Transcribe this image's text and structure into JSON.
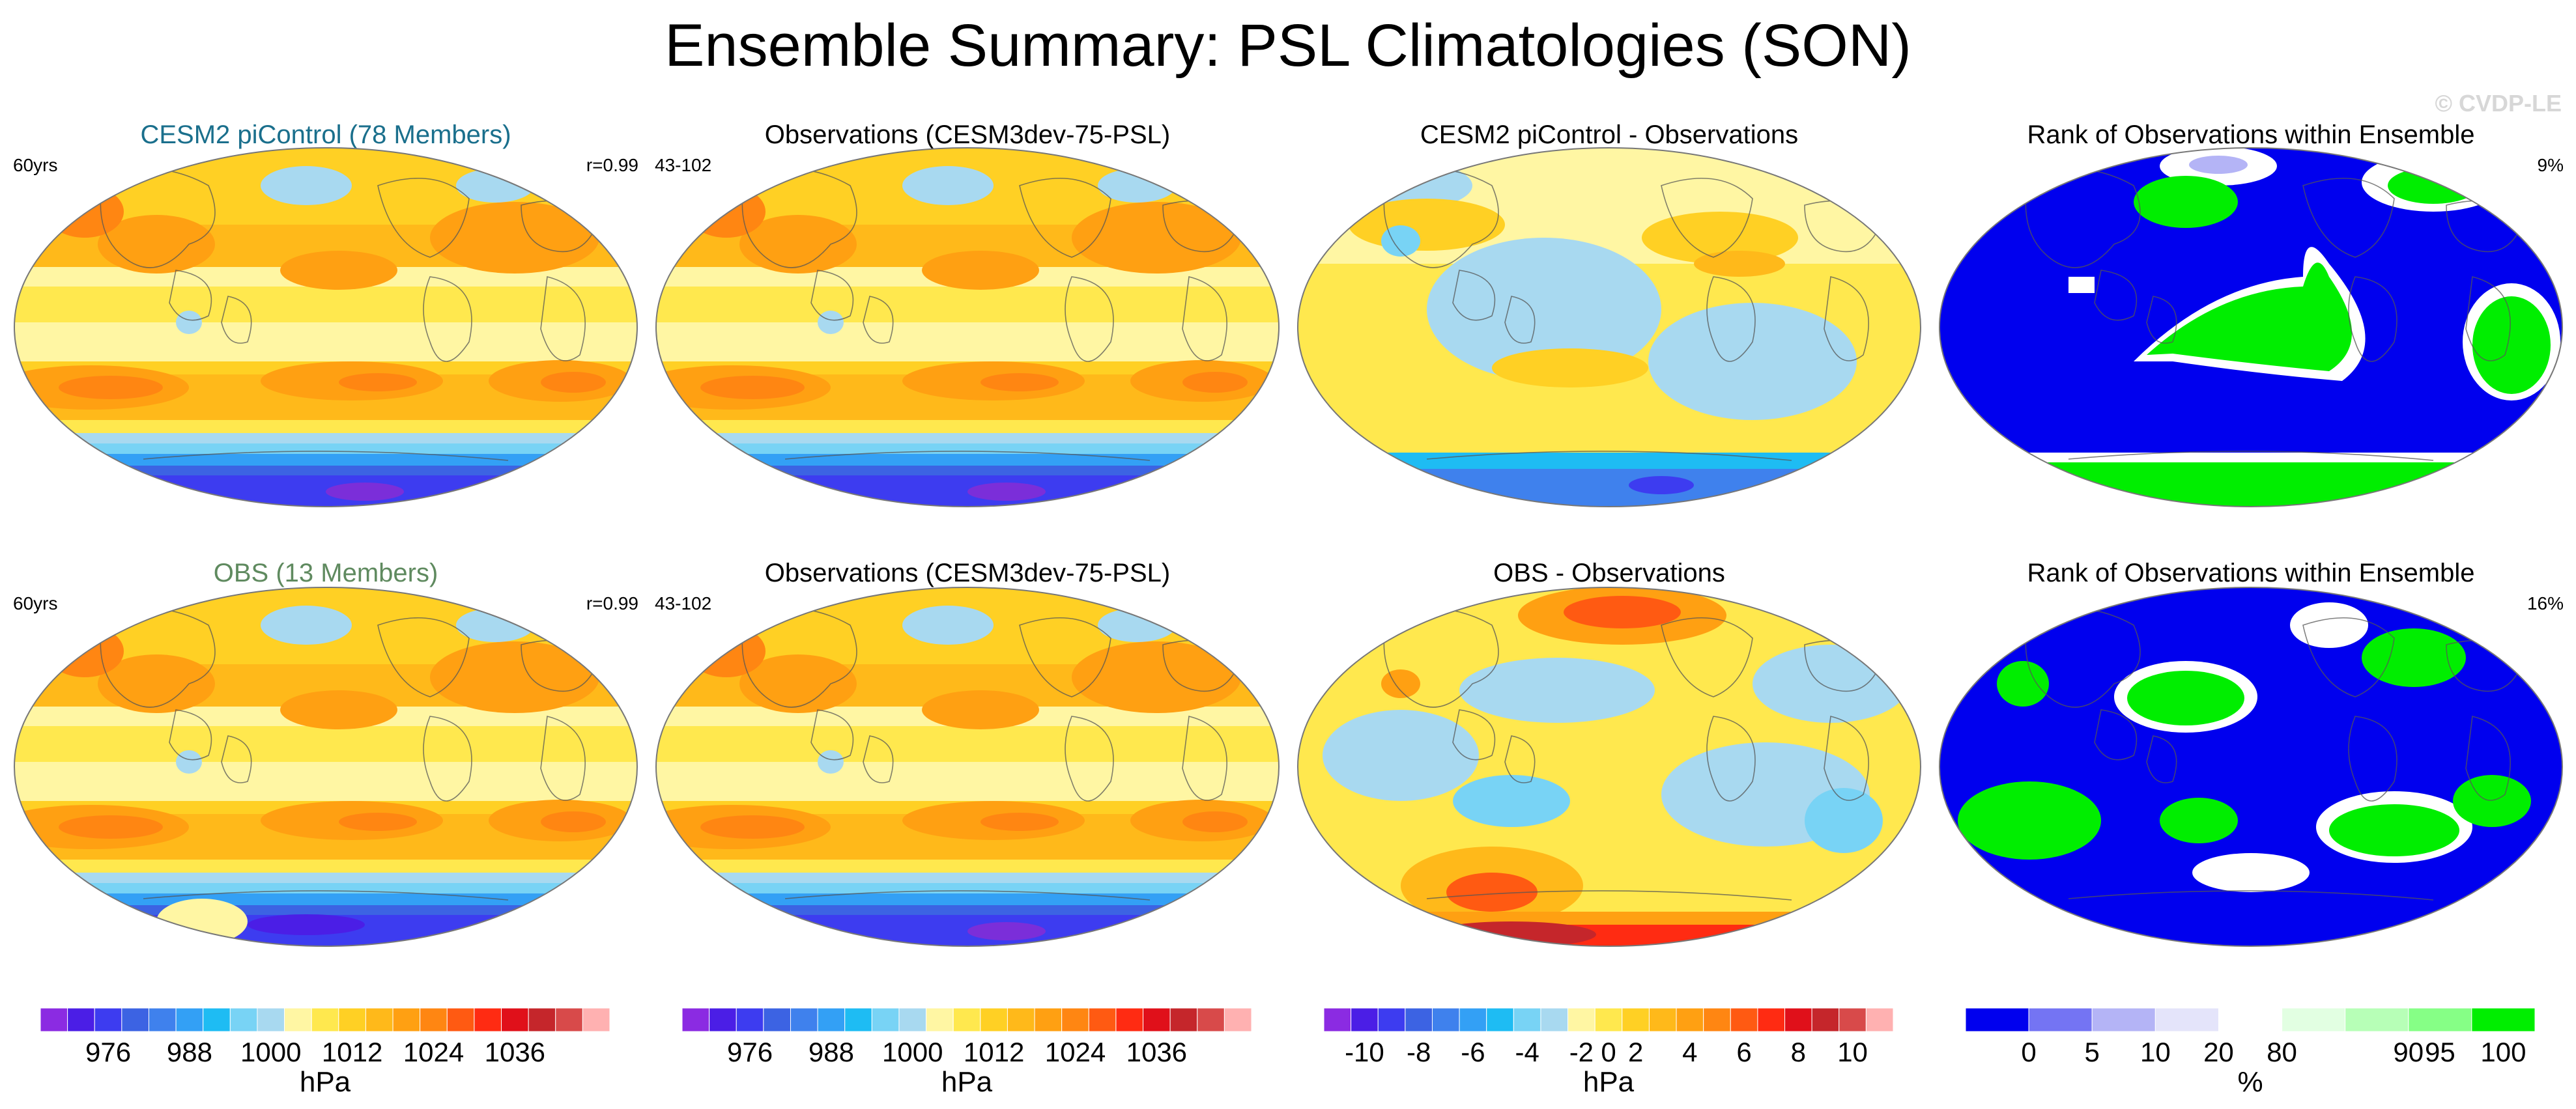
{
  "title": "Ensemble Summary: PSL Climatologies (SON)",
  "watermark": "© CVDP-LE",
  "colors": {
    "psl_scale": [
      "#8b2be2",
      "#4b1ee6",
      "#3d3cf0",
      "#3c63e3",
      "#3f81ed",
      "#33a0f5",
      "#1ebcf3",
      "#78d3f5",
      "#a8d9f0",
      "#fff6a3",
      "#ffe84e",
      "#ffd024",
      "#ffb91a",
      "#ffa012",
      "#ff8612",
      "#ff5a12",
      "#ff2b12",
      "#e0101a",
      "#c5262b",
      "#d84a4a",
      "#ffb1b1"
    ],
    "rank_scale": [
      "#0000ee",
      "#7474f3",
      "#b4b4f6",
      "#e4e4fa",
      "#ffffff",
      "#e2ffe2",
      "#b7ffb7",
      "#86ff86",
      "#00ee00"
    ],
    "title_ens1": "#1a6f8c",
    "title_ens2": "#5f8a5f"
  },
  "rows": [
    {
      "panels": [
        {
          "title": "CESM2 piControl (78 Members)",
          "left": "60yrs",
          "right": "r=0.99",
          "title_color": "title_ens1",
          "kind": "climo"
        },
        {
          "title": "Observations (CESM3dev-75-PSL)",
          "left": "43-102",
          "right": "",
          "title_color": "",
          "kind": "climo"
        },
        {
          "title": "CESM2 piControl - Observations",
          "left": "",
          "right": "",
          "title_color": "",
          "kind": "diff1"
        },
        {
          "title": "Rank of Observations within Ensemble",
          "left": "",
          "right": "9%",
          "title_color": "",
          "kind": "rank1"
        }
      ]
    },
    {
      "panels": [
        {
          "title": "OBS (13 Members)",
          "left": "60yrs",
          "right": "r=0.99",
          "title_color": "title_ens2",
          "kind": "climo2"
        },
        {
          "title": "Observations (CESM3dev-75-PSL)",
          "left": "43-102",
          "right": "",
          "title_color": "",
          "kind": "climo"
        },
        {
          "title": "OBS - Observations",
          "left": "",
          "right": "",
          "title_color": "",
          "kind": "diff2"
        },
        {
          "title": "Rank of Observations within Ensemble",
          "left": "",
          "right": "16%",
          "title_color": "",
          "kind": "rank2"
        }
      ]
    }
  ],
  "colorbars": [
    {
      "palette": "psl_scale",
      "ticks": [
        "976",
        "988",
        "1000",
        "1012",
        "1024",
        "1036"
      ],
      "tick_boxes": [
        2.5,
        5.5,
        8.5,
        11.5,
        14.5,
        17.5
      ],
      "unit": "hPa"
    },
    {
      "palette": "psl_scale",
      "ticks": [
        "976",
        "988",
        "1000",
        "1012",
        "1024",
        "1036"
      ],
      "tick_boxes": [
        2.5,
        5.5,
        8.5,
        11.5,
        14.5,
        17.5
      ],
      "unit": "hPa"
    },
    {
      "palette": "psl_scale",
      "ticks": [
        "-10",
        "-8",
        "-6",
        "-4",
        "-2",
        "0",
        "2",
        "4",
        "6",
        "8",
        "10"
      ],
      "tick_boxes": [
        1.5,
        3.5,
        5.5,
        7.5,
        9.5,
        10.5,
        11.5,
        13.5,
        15.5,
        17.5,
        19.5
      ],
      "unit": "hPa"
    },
    {
      "palette": "rank_scale",
      "ticks": [
        "0",
        "5",
        "10",
        "20",
        "80",
        "90",
        "95",
        "100"
      ],
      "tick_boxes": [
        1,
        2,
        3,
        4,
        5,
        7,
        7.5,
        8.5
      ],
      "unit": "%"
    }
  ]
}
